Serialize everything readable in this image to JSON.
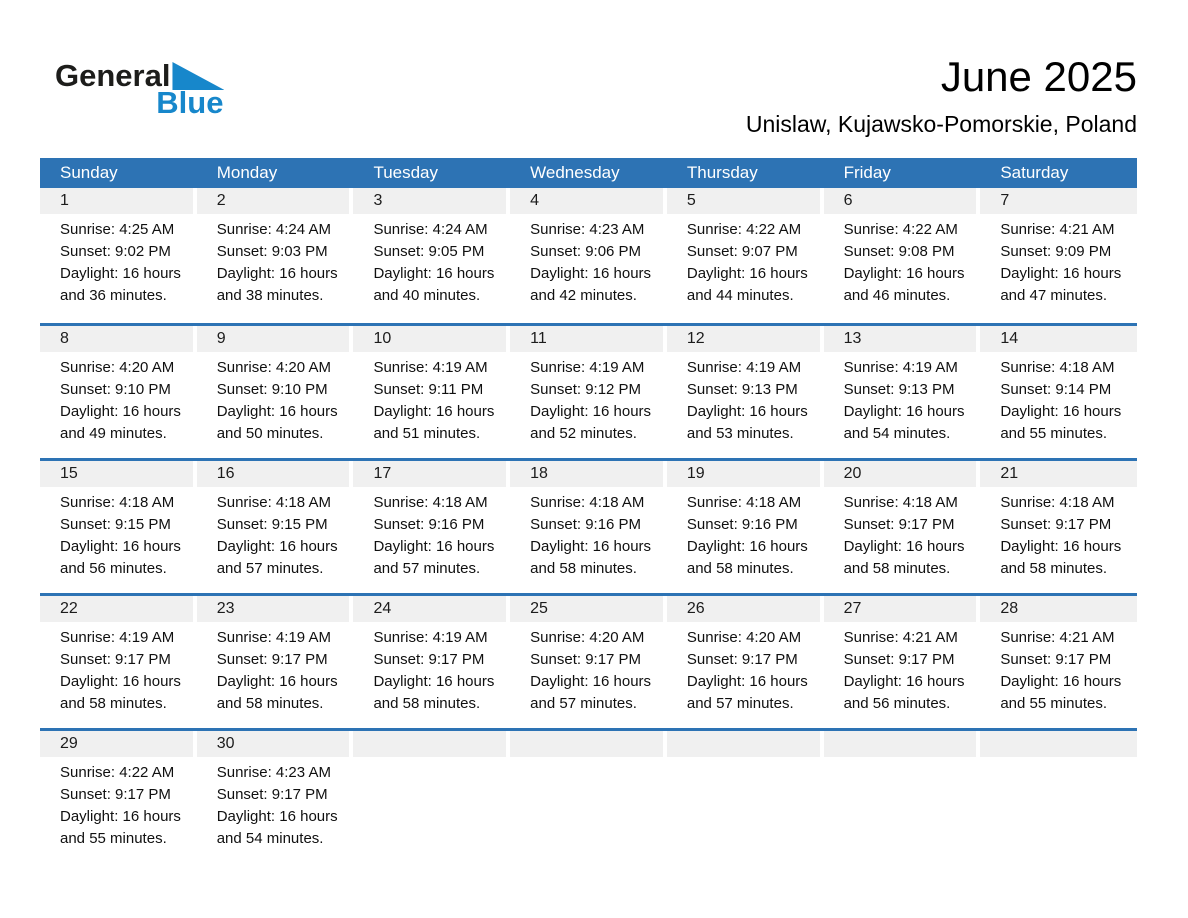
{
  "logo": {
    "part1": "General",
    "part2": "Blue"
  },
  "header": {
    "title": "June 2025",
    "subtitle": "Unislaw, Kujawsko-Pomorskie, Poland"
  },
  "colors": {
    "header_blue": "#2d73b4",
    "row_divider_blue": "#2d73b4",
    "day_strip_gray": "#f0f0f0",
    "logo_blue": "#1787cb"
  },
  "calendar": {
    "weekdays": [
      "Sunday",
      "Monday",
      "Tuesday",
      "Wednesday",
      "Thursday",
      "Friday",
      "Saturday"
    ],
    "weeks": [
      [
        {
          "day": "1",
          "sunrise": "Sunrise: 4:25 AM",
          "sunset": "Sunset: 9:02 PM",
          "daylight1": "Daylight: 16 hours",
          "daylight2": "and 36 minutes."
        },
        {
          "day": "2",
          "sunrise": "Sunrise: 4:24 AM",
          "sunset": "Sunset: 9:03 PM",
          "daylight1": "Daylight: 16 hours",
          "daylight2": "and 38 minutes."
        },
        {
          "day": "3",
          "sunrise": "Sunrise: 4:24 AM",
          "sunset": "Sunset: 9:05 PM",
          "daylight1": "Daylight: 16 hours",
          "daylight2": "and 40 minutes."
        },
        {
          "day": "4",
          "sunrise": "Sunrise: 4:23 AM",
          "sunset": "Sunset: 9:06 PM",
          "daylight1": "Daylight: 16 hours",
          "daylight2": "and 42 minutes."
        },
        {
          "day": "5",
          "sunrise": "Sunrise: 4:22 AM",
          "sunset": "Sunset: 9:07 PM",
          "daylight1": "Daylight: 16 hours",
          "daylight2": "and 44 minutes."
        },
        {
          "day": "6",
          "sunrise": "Sunrise: 4:22 AM",
          "sunset": "Sunset: 9:08 PM",
          "daylight1": "Daylight: 16 hours",
          "daylight2": "and 46 minutes."
        },
        {
          "day": "7",
          "sunrise": "Sunrise: 4:21 AM",
          "sunset": "Sunset: 9:09 PM",
          "daylight1": "Daylight: 16 hours",
          "daylight2": "and 47 minutes."
        }
      ],
      [
        {
          "day": "8",
          "sunrise": "Sunrise: 4:20 AM",
          "sunset": "Sunset: 9:10 PM",
          "daylight1": "Daylight: 16 hours",
          "daylight2": "and 49 minutes."
        },
        {
          "day": "9",
          "sunrise": "Sunrise: 4:20 AM",
          "sunset": "Sunset: 9:10 PM",
          "daylight1": "Daylight: 16 hours",
          "daylight2": "and 50 minutes."
        },
        {
          "day": "10",
          "sunrise": "Sunrise: 4:19 AM",
          "sunset": "Sunset: 9:11 PM",
          "daylight1": "Daylight: 16 hours",
          "daylight2": "and 51 minutes."
        },
        {
          "day": "11",
          "sunrise": "Sunrise: 4:19 AM",
          "sunset": "Sunset: 9:12 PM",
          "daylight1": "Daylight: 16 hours",
          "daylight2": "and 52 minutes."
        },
        {
          "day": "12",
          "sunrise": "Sunrise: 4:19 AM",
          "sunset": "Sunset: 9:13 PM",
          "daylight1": "Daylight: 16 hours",
          "daylight2": "and 53 minutes."
        },
        {
          "day": "13",
          "sunrise": "Sunrise: 4:19 AM",
          "sunset": "Sunset: 9:13 PM",
          "daylight1": "Daylight: 16 hours",
          "daylight2": "and 54 minutes."
        },
        {
          "day": "14",
          "sunrise": "Sunrise: 4:18 AM",
          "sunset": "Sunset: 9:14 PM",
          "daylight1": "Daylight: 16 hours",
          "daylight2": "and 55 minutes."
        }
      ],
      [
        {
          "day": "15",
          "sunrise": "Sunrise: 4:18 AM",
          "sunset": "Sunset: 9:15 PM",
          "daylight1": "Daylight: 16 hours",
          "daylight2": "and 56 minutes."
        },
        {
          "day": "16",
          "sunrise": "Sunrise: 4:18 AM",
          "sunset": "Sunset: 9:15 PM",
          "daylight1": "Daylight: 16 hours",
          "daylight2": "and 57 minutes."
        },
        {
          "day": "17",
          "sunrise": "Sunrise: 4:18 AM",
          "sunset": "Sunset: 9:16 PM",
          "daylight1": "Daylight: 16 hours",
          "daylight2": "and 57 minutes."
        },
        {
          "day": "18",
          "sunrise": "Sunrise: 4:18 AM",
          "sunset": "Sunset: 9:16 PM",
          "daylight1": "Daylight: 16 hours",
          "daylight2": "and 58 minutes."
        },
        {
          "day": "19",
          "sunrise": "Sunrise: 4:18 AM",
          "sunset": "Sunset: 9:16 PM",
          "daylight1": "Daylight: 16 hours",
          "daylight2": "and 58 minutes."
        },
        {
          "day": "20",
          "sunrise": "Sunrise: 4:18 AM",
          "sunset": "Sunset: 9:17 PM",
          "daylight1": "Daylight: 16 hours",
          "daylight2": "and 58 minutes."
        },
        {
          "day": "21",
          "sunrise": "Sunrise: 4:18 AM",
          "sunset": "Sunset: 9:17 PM",
          "daylight1": "Daylight: 16 hours",
          "daylight2": "and 58 minutes."
        }
      ],
      [
        {
          "day": "22",
          "sunrise": "Sunrise: 4:19 AM",
          "sunset": "Sunset: 9:17 PM",
          "daylight1": "Daylight: 16 hours",
          "daylight2": "and 58 minutes."
        },
        {
          "day": "23",
          "sunrise": "Sunrise: 4:19 AM",
          "sunset": "Sunset: 9:17 PM",
          "daylight1": "Daylight: 16 hours",
          "daylight2": "and 58 minutes."
        },
        {
          "day": "24",
          "sunrise": "Sunrise: 4:19 AM",
          "sunset": "Sunset: 9:17 PM",
          "daylight1": "Daylight: 16 hours",
          "daylight2": "and 58 minutes."
        },
        {
          "day": "25",
          "sunrise": "Sunrise: 4:20 AM",
          "sunset": "Sunset: 9:17 PM",
          "daylight1": "Daylight: 16 hours",
          "daylight2": "and 57 minutes."
        },
        {
          "day": "26",
          "sunrise": "Sunrise: 4:20 AM",
          "sunset": "Sunset: 9:17 PM",
          "daylight1": "Daylight: 16 hours",
          "daylight2": "and 57 minutes."
        },
        {
          "day": "27",
          "sunrise": "Sunrise: 4:21 AM",
          "sunset": "Sunset: 9:17 PM",
          "daylight1": "Daylight: 16 hours",
          "daylight2": "and 56 minutes."
        },
        {
          "day": "28",
          "sunrise": "Sunrise: 4:21 AM",
          "sunset": "Sunset: 9:17 PM",
          "daylight1": "Daylight: 16 hours",
          "daylight2": "and 55 minutes."
        }
      ],
      [
        {
          "day": "29",
          "sunrise": "Sunrise: 4:22 AM",
          "sunset": "Sunset: 9:17 PM",
          "daylight1": "Daylight: 16 hours",
          "daylight2": "and 55 minutes."
        },
        {
          "day": "30",
          "sunrise": "Sunrise: 4:23 AM",
          "sunset": "Sunset: 9:17 PM",
          "daylight1": "Daylight: 16 hours",
          "daylight2": "and 54 minutes."
        },
        null,
        null,
        null,
        null,
        null
      ]
    ]
  }
}
